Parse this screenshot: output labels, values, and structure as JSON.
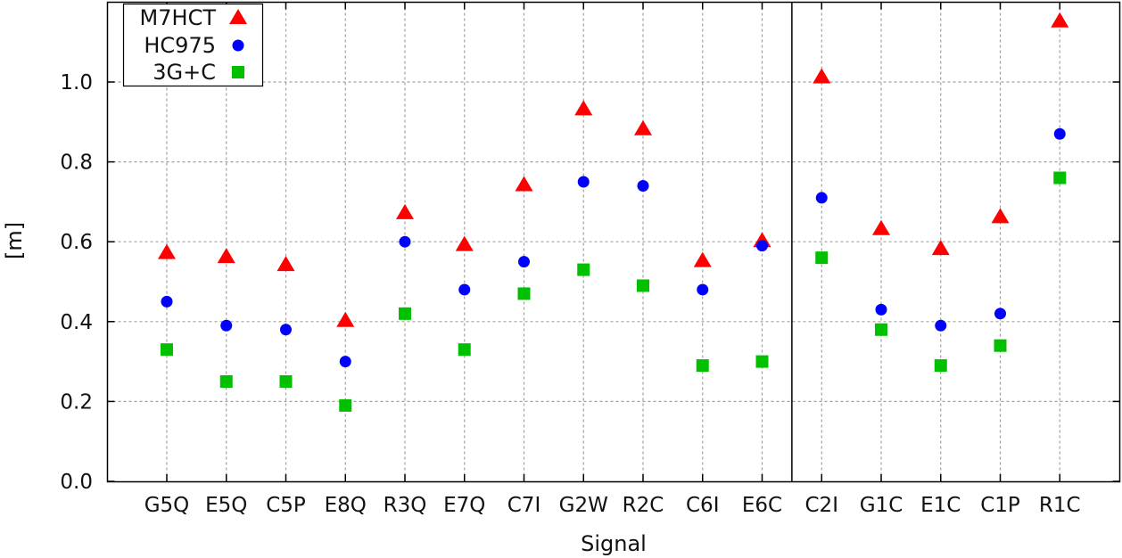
{
  "chart_data": {
    "type": "scatter",
    "title": "",
    "xlabel": "Signal",
    "ylabel": "[m]",
    "ylim": [
      0.0,
      1.2
    ],
    "yticks": [
      0.0,
      0.2,
      0.4,
      0.6,
      0.8,
      1.0
    ],
    "ytick_labels": [
      "0.0",
      "0.2",
      "0.4",
      "0.6",
      "0.8",
      "1.0"
    ],
    "grid": true,
    "legend_position": "top-left",
    "group_divider_after_index": 10,
    "categories": [
      "G5Q",
      "E5Q",
      "C5P",
      "E8Q",
      "R3Q",
      "E7Q",
      "C7I",
      "G2W",
      "R2C",
      "C6I",
      "E6C",
      "C2I",
      "G1C",
      "E1C",
      "C1P",
      "R1C"
    ],
    "series": [
      {
        "name": "M7HCT",
        "marker": "triangle",
        "color": "#ff0000",
        "values": [
          0.57,
          0.56,
          0.54,
          0.4,
          0.67,
          0.59,
          0.74,
          0.93,
          0.88,
          0.55,
          0.6,
          1.01,
          0.63,
          0.58,
          0.66,
          1.15
        ]
      },
      {
        "name": "HC975",
        "marker": "circle",
        "color": "#0000ff",
        "values": [
          0.45,
          0.39,
          0.38,
          0.3,
          0.6,
          0.48,
          0.55,
          0.75,
          0.74,
          0.48,
          0.59,
          0.71,
          0.43,
          0.39,
          0.42,
          0.87
        ]
      },
      {
        "name": "3G+C",
        "marker": "square",
        "color": "#00c000",
        "values": [
          0.33,
          0.25,
          0.25,
          0.19,
          0.42,
          0.33,
          0.47,
          0.53,
          0.49,
          0.29,
          0.3,
          0.56,
          0.38,
          0.29,
          0.34,
          0.76
        ]
      }
    ]
  }
}
